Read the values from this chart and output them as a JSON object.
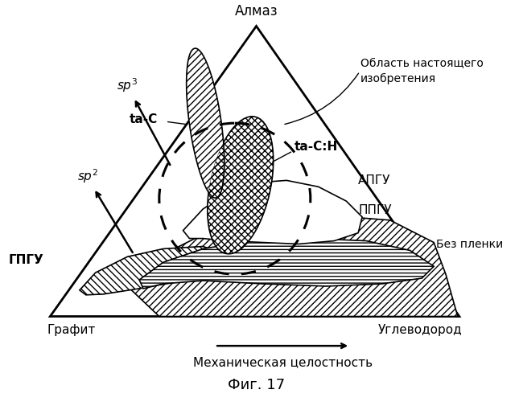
{
  "background": "#ffffff",
  "title": "Фиг. 17",
  "label_almaz": "Алмаз",
  "label_grafit": "Графит",
  "label_uglevodorod": "Углеводород",
  "label_sp3": "sp³",
  "label_sp2": "sp²",
  "label_gpgu": "ГПГУ",
  "label_oblast": "Область настоящего\nизобретения",
  "label_apgu": "АПГУ",
  "label_ppgu": "ППГУ",
  "label_bez_plenki": "Без пленки",
  "label_tac": "ta-C",
  "label_tach": "ta-C:Н",
  "label_mekh": "Механическая целостность"
}
